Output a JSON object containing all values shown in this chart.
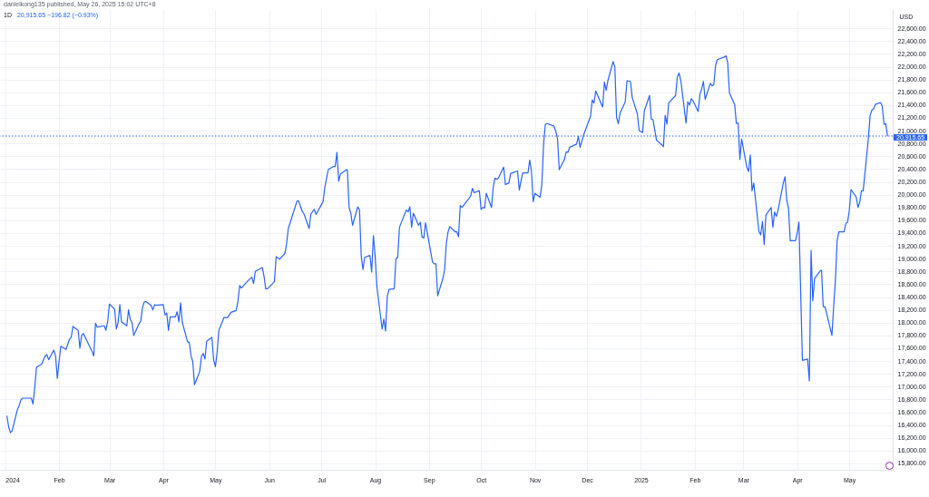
{
  "chart_data": {
    "type": "line",
    "title": "1D",
    "annotations": [
      "danielkong135 published, May 26, 2025 15:02 UTC+8",
      "20,915.65 −196.82 (−0.93%)"
    ],
    "ylabel": "USD",
    "x": [
      "2024-01-02",
      "2024-01-03",
      "2024-01-04",
      "2024-01-05",
      "2024-01-08",
      "2024-01-09",
      "2024-01-10",
      "2024-01-11",
      "2024-01-16",
      "2024-01-17",
      "2024-01-18",
      "2024-01-19",
      "2024-01-22",
      "2024-01-24",
      "2024-01-25",
      "2024-01-26",
      "2024-01-29",
      "2024-01-30",
      "2024-01-31",
      "2024-02-01",
      "2024-02-02",
      "2024-02-05",
      "2024-02-07",
      "2024-02-08",
      "2024-02-09",
      "2024-02-12",
      "2024-02-13",
      "2024-02-14",
      "2024-02-15",
      "2024-02-20",
      "2024-02-21",
      "2024-02-22",
      "2024-02-23",
      "2024-02-27",
      "2024-02-28",
      "2024-02-29",
      "2024-03-01",
      "2024-03-04",
      "2024-03-05",
      "2024-03-06",
      "2024-03-07",
      "2024-03-08",
      "2024-03-11",
      "2024-03-12",
      "2024-03-13",
      "2024-03-14",
      "2024-03-15",
      "2024-03-18",
      "2024-03-19",
      "2024-03-20",
      "2024-03-21",
      "2024-03-22",
      "2024-03-25",
      "2024-03-26",
      "2024-03-27",
      "2024-03-28",
      "2024-04-01",
      "2024-04-02",
      "2024-04-03",
      "2024-04-04",
      "2024-04-05",
      "2024-04-08",
      "2024-04-09",
      "2024-04-10",
      "2024-04-11",
      "2024-04-12",
      "2024-04-15",
      "2024-04-16",
      "2024-04-17",
      "2024-04-18",
      "2024-04-19",
      "2024-04-22",
      "2024-04-23",
      "2024-04-24",
      "2024-04-25",
      "2024-04-26",
      "2024-04-29",
      "2024-04-30",
      "2024-05-01",
      "2024-05-02",
      "2024-05-03",
      "2024-05-06",
      "2024-05-08",
      "2024-05-10",
      "2024-05-13",
      "2024-05-14",
      "2024-05-15",
      "2024-05-16",
      "2024-05-20",
      "2024-05-22",
      "2024-05-23",
      "2024-05-24",
      "2024-05-28",
      "2024-05-29",
      "2024-05-30",
      "2024-05-31",
      "2024-06-04",
      "2024-06-05",
      "2024-06-07",
      "2024-06-10",
      "2024-06-11",
      "2024-06-12",
      "2024-06-14",
      "2024-06-17",
      "2024-06-18",
      "2024-06-20",
      "2024-06-21",
      "2024-06-24",
      "2024-06-25",
      "2024-06-27",
      "2024-06-28",
      "2024-07-02",
      "2024-07-03",
      "2024-07-05",
      "2024-07-08",
      "2024-07-09",
      "2024-07-10",
      "2024-07-11",
      "2024-07-12",
      "2024-07-15",
      "2024-07-16",
      "2024-07-17",
      "2024-07-18",
      "2024-07-19",
      "2024-07-22",
      "2024-07-23",
      "2024-07-24",
      "2024-07-25",
      "2024-07-26",
      "2024-07-29",
      "2024-07-30",
      "2024-07-31",
      "2024-08-01",
      "2024-08-02",
      "2024-08-05",
      "2024-08-06",
      "2024-08-07",
      "2024-08-08",
      "2024-08-09",
      "2024-08-12",
      "2024-08-13",
      "2024-08-14",
      "2024-08-15",
      "2024-08-16",
      "2024-08-19",
      "2024-08-20",
      "2024-08-21",
      "2024-08-22",
      "2024-08-23",
      "2024-08-26",
      "2024-08-27",
      "2024-08-28",
      "2024-08-29",
      "2024-08-30",
      "2024-09-03",
      "2024-09-04",
      "2024-09-05",
      "2024-09-06",
      "2024-09-09",
      "2024-09-10",
      "2024-09-11",
      "2024-09-12",
      "2024-09-13",
      "2024-09-16",
      "2024-09-17",
      "2024-09-18",
      "2024-09-19",
      "2024-09-20",
      "2024-09-24",
      "2024-09-25",
      "2024-09-26",
      "2024-09-27",
      "2024-09-30",
      "2024-10-01",
      "2024-10-02",
      "2024-10-03",
      "2024-10-04",
      "2024-10-07",
      "2024-10-08",
      "2024-10-09",
      "2024-10-10",
      "2024-10-11",
      "2024-10-14",
      "2024-10-15",
      "2024-10-16",
      "2024-10-17",
      "2024-10-18",
      "2024-10-22",
      "2024-10-23",
      "2024-10-24",
      "2024-10-25",
      "2024-10-28",
      "2024-10-29",
      "2024-10-30",
      "2024-10-31",
      "2024-11-01",
      "2024-11-04",
      "2024-11-05",
      "2024-11-06",
      "2024-11-07",
      "2024-11-08",
      "2024-11-12",
      "2024-11-13",
      "2024-11-14",
      "2024-11-15",
      "2024-11-18",
      "2024-11-19",
      "2024-11-20",
      "2024-11-21",
      "2024-11-25",
      "2024-11-26",
      "2024-11-27",
      "2024-11-29",
      "2024-12-02",
      "2024-12-03",
      "2024-12-04",
      "2024-12-05",
      "2024-12-06",
      "2024-12-09",
      "2024-12-10",
      "2024-12-11",
      "2024-12-12",
      "2024-12-13",
      "2024-12-16",
      "2024-12-17",
      "2024-12-18",
      "2024-12-19",
      "2024-12-20",
      "2024-12-23",
      "2024-12-24",
      "2024-12-26",
      "2024-12-27",
      "2024-12-30",
      "2024-12-31",
      "2025-01-02",
      "2025-01-03",
      "2025-01-06",
      "2025-01-07",
      "2025-01-08",
      "2025-01-10",
      "2025-01-13",
      "2025-01-14",
      "2025-01-15",
      "2025-01-16",
      "2025-01-17",
      "2025-01-21",
      "2025-01-22",
      "2025-01-23",
      "2025-01-24",
      "2025-01-27",
      "2025-01-28",
      "2025-01-29",
      "2025-01-30",
      "2025-01-31",
      "2025-02-03",
      "2025-02-04",
      "2025-02-05",
      "2025-02-06",
      "2025-02-07",
      "2025-02-10",
      "2025-02-11",
      "2025-02-12",
      "2025-02-13",
      "2025-02-14",
      "2025-02-18",
      "2025-02-19",
      "2025-02-20",
      "2025-02-21",
      "2025-02-24",
      "2025-02-25",
      "2025-02-26",
      "2025-02-27",
      "2025-02-28",
      "2025-03-03",
      "2025-03-04",
      "2025-03-05",
      "2025-03-06",
      "2025-03-07",
      "2025-03-10",
      "2025-03-11",
      "2025-03-12",
      "2025-03-13",
      "2025-03-14",
      "2025-03-17",
      "2025-03-18",
      "2025-03-19",
      "2025-03-20",
      "2025-03-21",
      "2025-03-24",
      "2025-03-25",
      "2025-03-26",
      "2025-03-27",
      "2025-03-28",
      "2025-03-31",
      "2025-04-01",
      "2025-04-02",
      "2025-04-03",
      "2025-04-04",
      "2025-04-07",
      "2025-04-08",
      "2025-04-09",
      "2025-04-10",
      "2025-04-11",
      "2025-04-14",
      "2025-04-15",
      "2025-04-16",
      "2025-04-17",
      "2025-04-21",
      "2025-04-22",
      "2025-04-23",
      "2025-04-24",
      "2025-04-25",
      "2025-04-28",
      "2025-04-29",
      "2025-04-30",
      "2025-05-01",
      "2025-05-02",
      "2025-05-05",
      "2025-05-06",
      "2025-05-07",
      "2025-05-08",
      "2025-05-09",
      "2025-05-12",
      "2025-05-13",
      "2025-05-14",
      "2025-05-15",
      "2025-05-16",
      "2025-05-19",
      "2025-05-20",
      "2025-05-21",
      "2025-05-22",
      "2025-05-23"
    ],
    "series": [
      {
        "color": "#2962ff",
        "values": [
          16540,
          16370,
          16280,
          16310,
          16640,
          16700,
          16790,
          16820,
          16820,
          16730,
          16980,
          17300,
          17350,
          17480,
          17500,
          17420,
          17570,
          17480,
          17130,
          17390,
          17630,
          17580,
          17740,
          17770,
          17940,
          17880,
          17600,
          17800,
          17830,
          17550,
          17480,
          17990,
          17930,
          17950,
          17880,
          18020,
          18290,
          18210,
          17900,
          18000,
          18280,
          18010,
          17950,
          18200,
          18050,
          18000,
          17800,
          17980,
          18020,
          18230,
          18320,
          18330,
          18270,
          18200,
          18280,
          18270,
          18280,
          18120,
          18150,
          17880,
          18090,
          18090,
          18170,
          18010,
          18310,
          18000,
          17700,
          17690,
          17480,
          17390,
          17030,
          17240,
          17470,
          17520,
          17430,
          17710,
          17770,
          17420,
          17310,
          17530,
          17880,
          18080,
          18080,
          18160,
          18190,
          18330,
          18580,
          18540,
          18660,
          18710,
          18610,
          18800,
          18860,
          18730,
          18530,
          18530,
          18640,
          19030,
          18990,
          19080,
          19230,
          19470,
          19640,
          19900,
          19900,
          19740,
          19700,
          19470,
          19700,
          19770,
          19690,
          19890,
          20110,
          20390,
          20440,
          20440,
          20660,
          20210,
          20320,
          20380,
          20390,
          19800,
          19710,
          19520,
          19810,
          19760,
          19040,
          18830,
          19020,
          19050,
          18790,
          19360,
          19040,
          18570,
          17900,
          18060,
          17870,
          18410,
          18520,
          18530,
          19000,
          19020,
          19490,
          19560,
          19760,
          19730,
          19810,
          19490,
          19710,
          19520,
          19570,
          19340,
          19320,
          19560,
          18950,
          18920,
          18920,
          18420,
          18690,
          18830,
          19240,
          19420,
          19500,
          19420,
          19420,
          19340,
          19830,
          19800,
          19940,
          19980,
          20100,
          20030,
          20060,
          19770,
          19800,
          19790,
          20020,
          19800,
          20120,
          20260,
          20240,
          20260,
          20430,
          20160,
          20170,
          20180,
          20330,
          20370,
          20070,
          20220,
          20340,
          20340,
          20540,
          20370,
          19890,
          20020,
          19960,
          20170,
          20790,
          21100,
          21110,
          21070,
          20990,
          20880,
          20390,
          20550,
          20670,
          20660,
          20740,
          20790,
          20910,
          20740,
          20930,
          21150,
          21220,
          21480,
          21430,
          21620,
          21430,
          21370,
          21760,
          21630,
          21780,
          22080,
          22000,
          21210,
          21110,
          21270,
          21450,
          21780,
          21770,
          21520,
          21260,
          21000,
          20970,
          21310,
          21550,
          21180,
          21170,
          20850,
          20780,
          20750,
          21240,
          21100,
          21430,
          21550,
          21840,
          21900,
          21780,
          21120,
          21450,
          21400,
          21500,
          21470,
          21300,
          21570,
          21650,
          21770,
          21490,
          21740,
          21700,
          21720,
          22020,
          22110,
          22150,
          22170,
          22060,
          21590,
          21410,
          21110,
          21120,
          20550,
          20870,
          20430,
          20360,
          20620,
          20060,
          20180,
          19420,
          19370,
          19580,
          19220,
          19680,
          19800,
          19490,
          19730,
          19660,
          19760,
          20180,
          20280,
          19910,
          19790,
          19280,
          19280,
          19400,
          19570,
          18500,
          17410,
          17430,
          17090,
          19130,
          18340,
          18690,
          18800,
          18820,
          18250,
          18250,
          17800,
          18250,
          18660,
          19280,
          19420,
          19420,
          19550,
          19570,
          19750,
          20080,
          19960,
          19800,
          19880,
          20060,
          20060,
          20880,
          21240,
          21320,
          21340,
          21410,
          21440,
          21380,
          21100,
          21110,
          20915.65
        ]
      }
    ],
    "xlim": [
      "2023-12-29",
      "2025-05-26"
    ],
    "xticks": [
      {
        "value": "2024-01-01",
        "label": "2024"
      },
      {
        "value": "2024-02-01",
        "label": "Feb"
      },
      {
        "value": "2024-03-01",
        "label": "Mar"
      },
      {
        "value": "2024-04-01",
        "label": "Apr"
      },
      {
        "value": "2024-05-01",
        "label": "May"
      },
      {
        "value": "2024-06-01",
        "label": "Jun"
      },
      {
        "value": "2024-07-01",
        "label": "Jul"
      },
      {
        "value": "2024-08-01",
        "label": "Aug"
      },
      {
        "value": "2024-09-01",
        "label": "Sep"
      },
      {
        "value": "2024-10-01",
        "label": "Oct"
      },
      {
        "value": "2024-11-01",
        "label": "Nov"
      },
      {
        "value": "2024-12-01",
        "label": "Dec"
      },
      {
        "value": "2025-01-01",
        "label": "2025"
      },
      {
        "value": "2025-02-01",
        "label": "Feb"
      },
      {
        "value": "2025-03-01",
        "label": "Mar"
      },
      {
        "value": "2025-04-01",
        "label": "Apr"
      },
      {
        "value": "2025-05-01",
        "label": "May"
      }
    ],
    "ylim": [
      15700,
      22900
    ],
    "yticks": [
      {
        "value": 15800,
        "label": "15,800.00"
      },
      {
        "value": 16000,
        "label": "16,000.00"
      },
      {
        "value": 16200,
        "label": "16,200.00"
      },
      {
        "value": 16400,
        "label": "16,400.00"
      },
      {
        "value": 16600,
        "label": "16,600.00"
      },
      {
        "value": 16800,
        "label": "16,800.00"
      },
      {
        "value": 17000,
        "label": "17,000.00"
      },
      {
        "value": 17200,
        "label": "17,200.00"
      },
      {
        "value": 17400,
        "label": "17,400.00"
      },
      {
        "value": 17600,
        "label": "17,600.00"
      },
      {
        "value": 17800,
        "label": "17,800.00"
      },
      {
        "value": 18000,
        "label": "18,000.00"
      },
      {
        "value": 18200,
        "label": "18,200.00"
      },
      {
        "value": 18400,
        "label": "18,400.00"
      },
      {
        "value": 18600,
        "label": "18,600.00"
      },
      {
        "value": 18800,
        "label": "18,800.00"
      },
      {
        "value": 19000,
        "label": "19,000.00"
      },
      {
        "value": 19200,
        "label": "19,200.00"
      },
      {
        "value": 19400,
        "label": "19,400.00"
      },
      {
        "value": 19600,
        "label": "19,600.00"
      },
      {
        "value": 19800,
        "label": "19,800.00"
      },
      {
        "value": 20000,
        "label": "20,000.00"
      },
      {
        "value": 20200,
        "label": "20,200.00"
      },
      {
        "value": 20400,
        "label": "20,400.00"
      },
      {
        "value": 20600,
        "label": "20,600.00"
      },
      {
        "value": 20800,
        "label": "20,800.00"
      },
      {
        "value": 21000,
        "label": "21,000.00"
      },
      {
        "value": 21200,
        "label": "21,200.00"
      },
      {
        "value": 21400,
        "label": "21,400.00"
      },
      {
        "value": 21600,
        "label": "21,600.00"
      },
      {
        "value": 21800,
        "label": "21,800.00"
      },
      {
        "value": 22000,
        "label": "22,000.00"
      },
      {
        "value": 22200,
        "label": "22,200.00"
      },
      {
        "value": 22400,
        "label": "22,400.00"
      },
      {
        "value": 22600,
        "label": "22,600.00"
      }
    ],
    "grid": true,
    "ref_lines": [
      {
        "axis": "y",
        "value": 20915.65,
        "label": "20,915.65",
        "color": "#2962ff",
        "line_style": "dotted"
      }
    ]
  }
}
